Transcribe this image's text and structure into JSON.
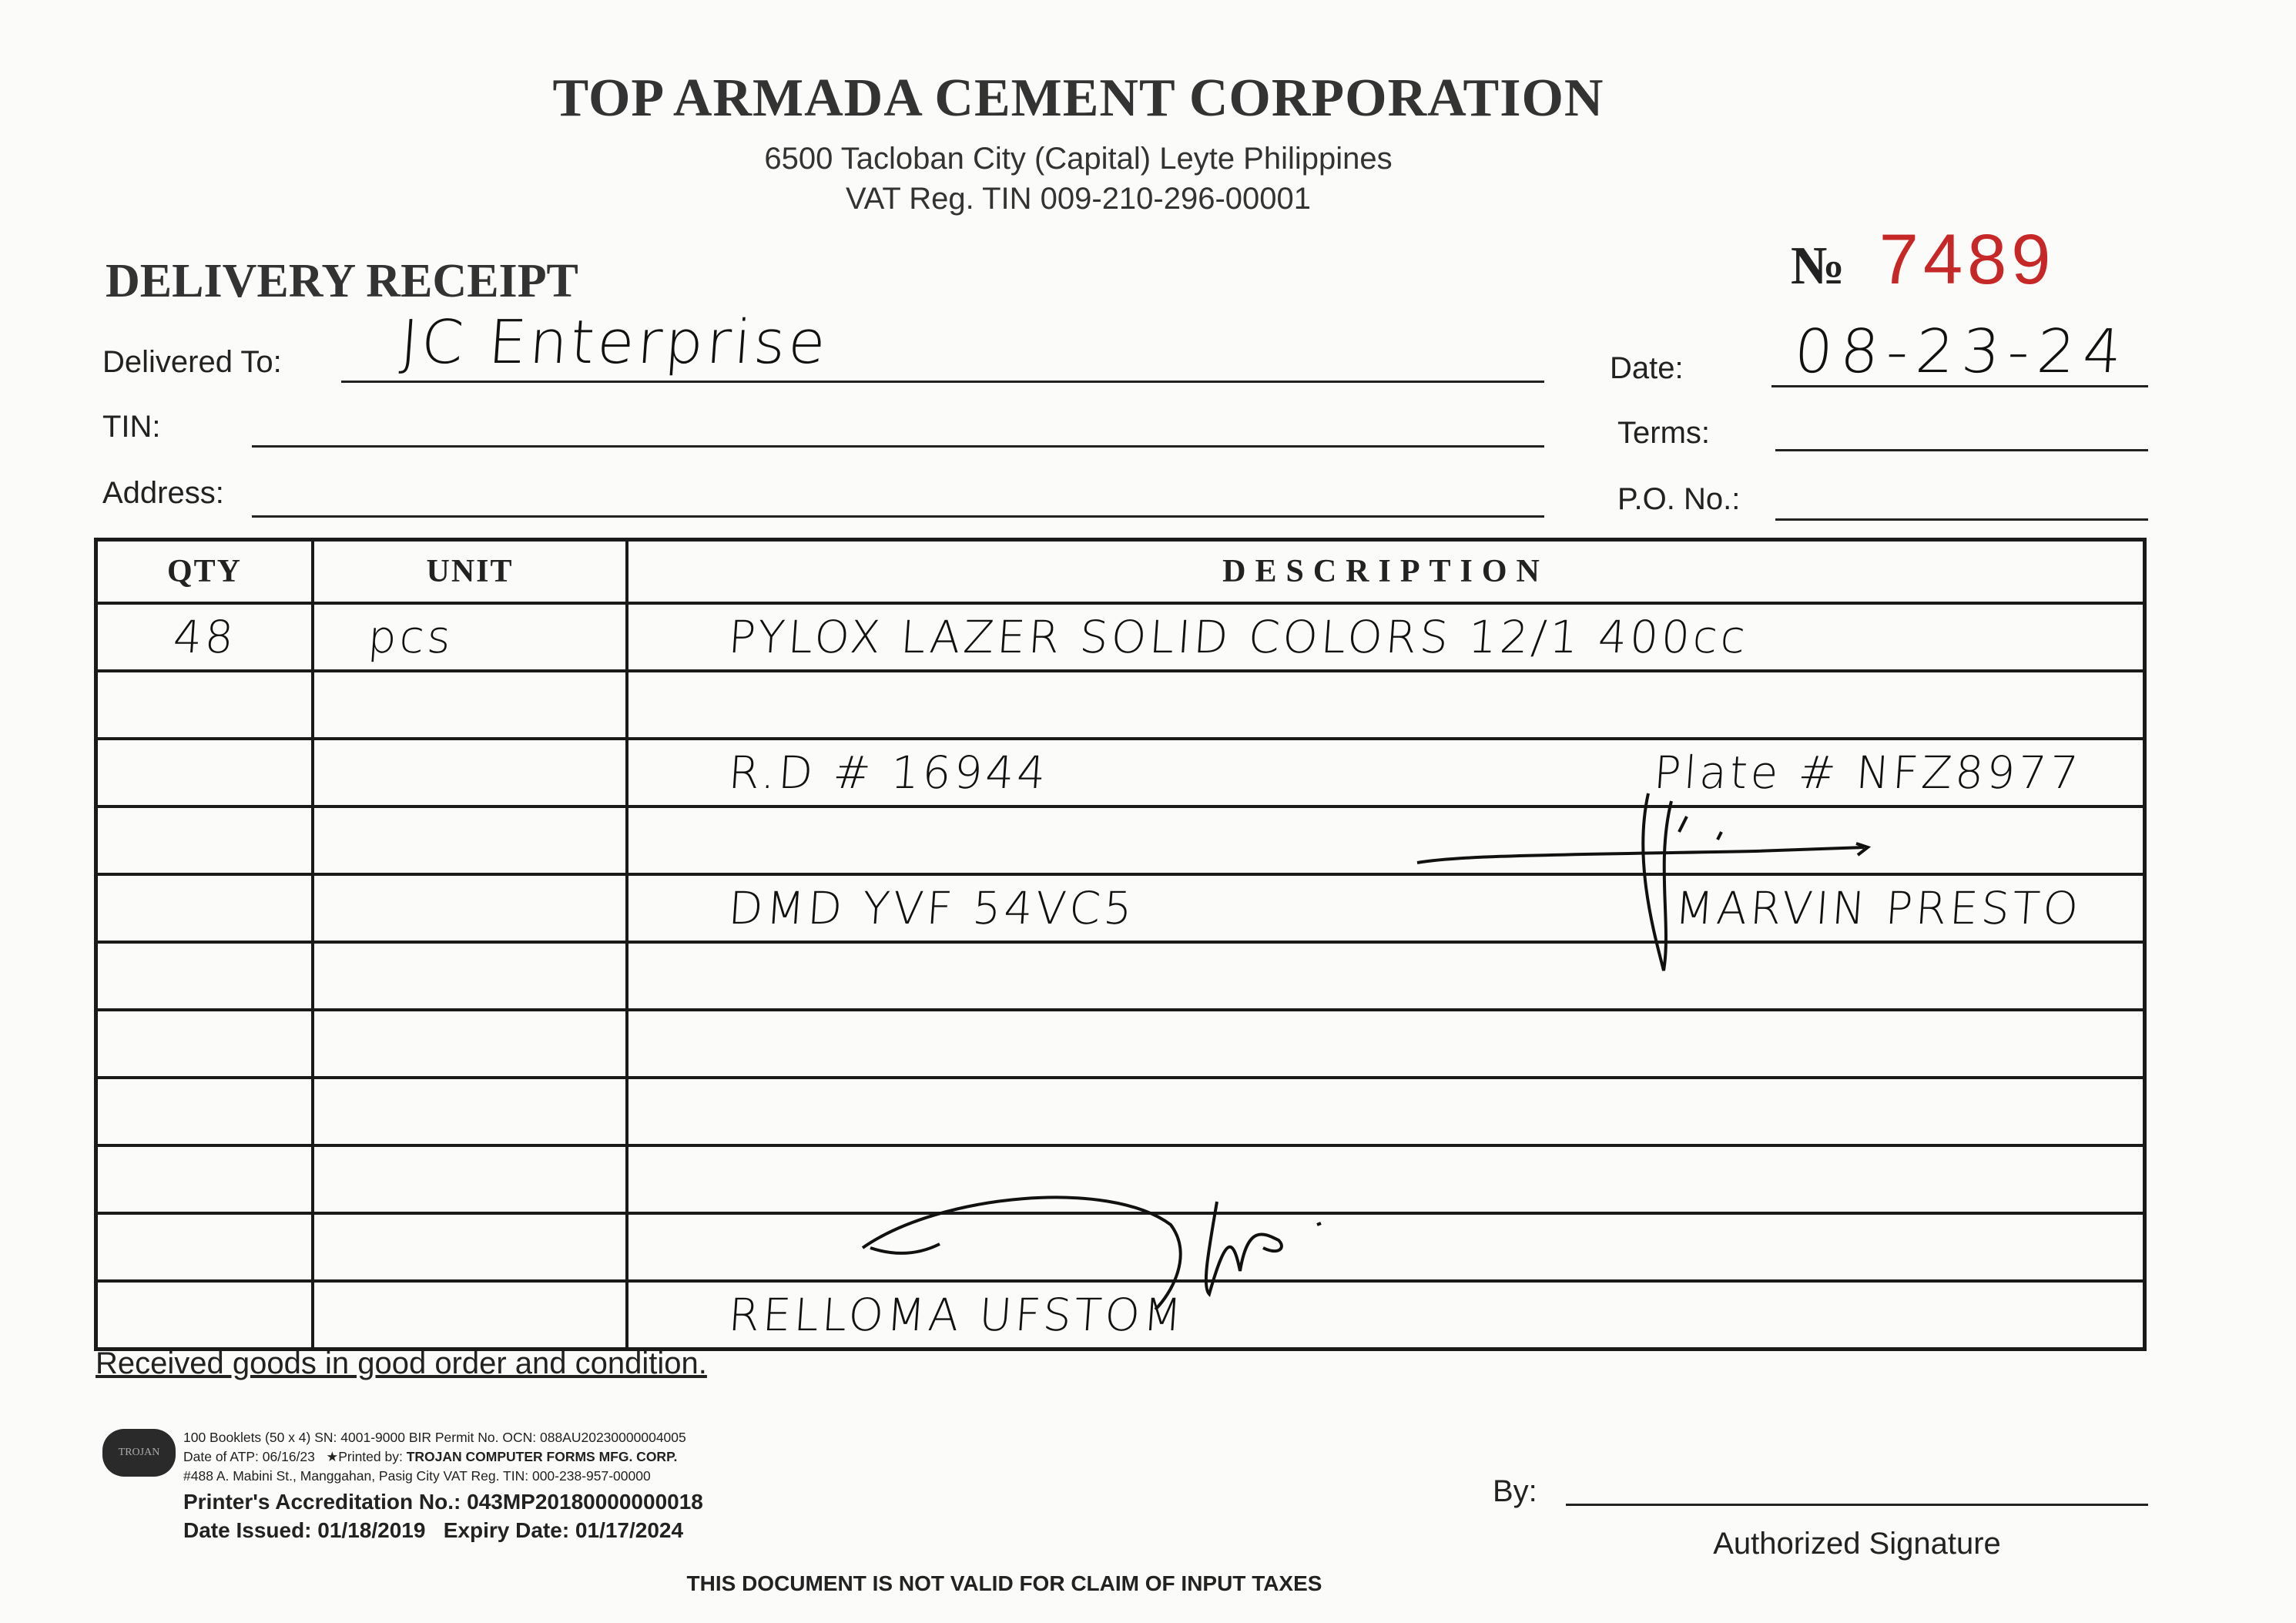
{
  "company": {
    "name": "TOP ARMADA CEMENT CORPORATION",
    "address": "6500 Tacloban City (Capital) Leyte Philippines",
    "vat_tin": "VAT Reg. TIN 009-210-296-00001"
  },
  "form": {
    "title": "DELIVERY RECEIPT",
    "number_label": "№",
    "number": "7489",
    "number_color": "#c62828"
  },
  "fields": {
    "delivered_to_label": "Delivered To:",
    "delivered_to_value": "JC Enterprise",
    "tin_label": "TIN:",
    "tin_value": "",
    "address_label": "Address:",
    "address_value": "",
    "date_label": "Date:",
    "date_value": "08-23-24",
    "terms_label": "Terms:",
    "terms_value": "",
    "po_label": "P.O. No.:",
    "po_value": ""
  },
  "table": {
    "headers": [
      "QTY",
      "UNIT",
      "DESCRIPTION"
    ],
    "rows": [
      {
        "qty": "48",
        "unit": "pcs",
        "desc": "PYLOX LAZER SOLID COLORS 12/1 400cc",
        "desc_right": ""
      },
      {
        "qty": "",
        "unit": "",
        "desc": "",
        "desc_right": ""
      },
      {
        "qty": "",
        "unit": "",
        "desc": "R.D # 16944",
        "desc_right": "Plate # NFZ8977"
      },
      {
        "qty": "",
        "unit": "",
        "desc": "",
        "desc_right": ""
      },
      {
        "qty": "",
        "unit": "",
        "desc": "DMD YVF 54VC5",
        "desc_right": "MARVIN PRESTO"
      },
      {
        "qty": "",
        "unit": "",
        "desc": "",
        "desc_right": ""
      },
      {
        "qty": "",
        "unit": "",
        "desc": "",
        "desc_right": ""
      },
      {
        "qty": "",
        "unit": "",
        "desc": "",
        "desc_right": ""
      },
      {
        "qty": "",
        "unit": "",
        "desc": "",
        "desc_right": ""
      },
      {
        "qty": "",
        "unit": "",
        "desc": "",
        "desc_right": ""
      },
      {
        "qty": "",
        "unit": "",
        "desc": "RELLOMA UFSTOM",
        "desc_right": ""
      }
    ]
  },
  "footer": {
    "received_text": "Received goods in good order and condition.",
    "printer_line1": "100 Booklets (50 x 4) SN: 4001-9000 BIR Permit No. OCN: 088AU20230000004005",
    "printer_line2_a": "Date of ATP: 06/16/23",
    "printer_line2_b": "★Printed by:",
    "printer_line2_c": "TROJAN COMPUTER FORMS MFG. CORP.",
    "printer_line3": "#488 A. Mabini St., Manggahan, Pasig City  VAT Reg. TIN: 000-238-957-00000",
    "accreditation": "Printer's Accreditation No.: 043MP20180000000018",
    "dates": "Date Issued: 01/18/2019   Expiry Date: 01/17/2024",
    "printer_logo_text": "TROJAN",
    "by_label": "By:",
    "authorized_signature": "Authorized Signature",
    "disclaimer": "THIS DOCUMENT IS NOT VALID FOR CLAIM OF INPUT TAXES"
  }
}
